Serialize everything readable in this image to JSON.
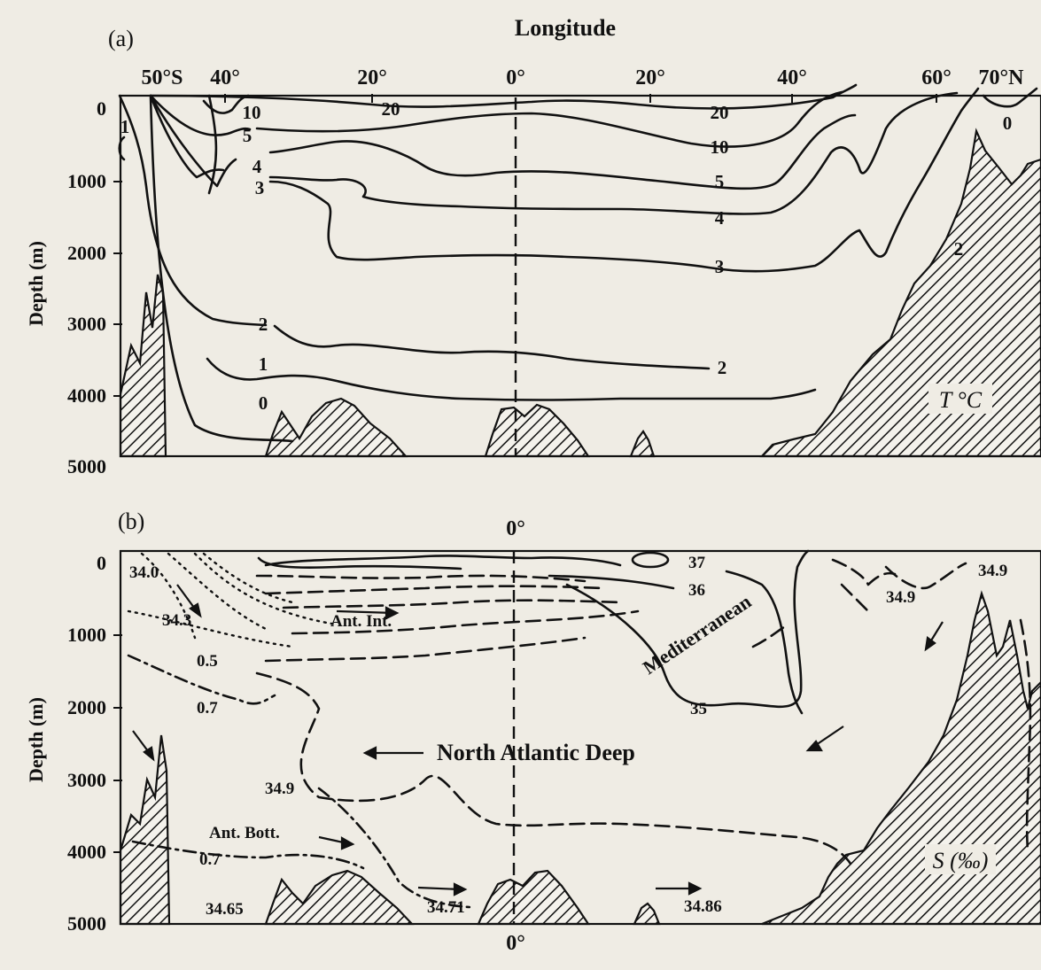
{
  "colors": {
    "ink": "#111111",
    "paper": "#efece4"
  },
  "top_axis": {
    "title": "Longitude",
    "labels": [
      "50°S",
      "40°",
      "20°",
      "0°",
      "20°",
      "40°",
      "60°",
      "70°N"
    ]
  },
  "panel_a": {
    "label": "(a)",
    "y_axis_title": "Depth (m)",
    "y_ticks": [
      "0",
      "1000",
      "2000",
      "3000",
      "4000",
      "5000"
    ],
    "variable": "T °C",
    "contour_labels": [
      "1",
      "10",
      "5",
      "4",
      "3",
      "20",
      "20",
      "10",
      "5",
      "4",
      "3",
      "2",
      "0",
      "2",
      "1",
      "0",
      "2"
    ]
  },
  "panel_b": {
    "label": "(b)",
    "top_label": "0°",
    "bottom_label": "0°",
    "y_axis_title": "Depth (m)",
    "y_ticks": [
      "0",
      "1000",
      "2000",
      "3000",
      "4000",
      "5000"
    ],
    "variable": "S (‰)",
    "water_masses": {
      "ant_int": "Ant. Int.",
      "mediterranean": "Mediterranean",
      "nadw": "North Atlantic Deep",
      "ant_bott": "Ant. Bott."
    },
    "salinity_labels": {
      "s340": "34.0",
      "s343": "34.3",
      "s05": "0.5",
      "s07a": "0.7",
      "s349a": "34.9",
      "s07b": "0.7",
      "s3465": "34.65",
      "s3471": "34.71",
      "s3486": "34.86",
      "s37": "37",
      "s36": "36",
      "s35": "35",
      "s349b": "34.9",
      "s349c": "34.9"
    }
  }
}
